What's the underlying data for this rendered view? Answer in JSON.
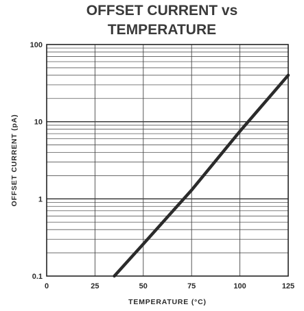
{
  "chart_data": {
    "type": "line",
    "title_line1": "OFFSET CURRENT vs",
    "title_line2": "TEMPERATURE",
    "xlabel": "TEMPERATURE (°C)",
    "ylabel": "OFFSET CURRENT (pA)",
    "xlim": [
      0,
      125
    ],
    "ylim": [
      0.1,
      100
    ],
    "yscale": "log",
    "grid": true,
    "x_ticks": [
      0,
      25,
      50,
      75,
      100,
      125
    ],
    "x_tick_labels": [
      "0",
      "25",
      "50",
      "75",
      "100",
      "125"
    ],
    "y_ticks": [
      0.1,
      1,
      10,
      100
    ],
    "y_tick_labels": [
      "0.1",
      "1",
      "10",
      "100"
    ],
    "series": [
      {
        "x": [
          35,
          50,
          75,
          100,
          125
        ],
        "y": [
          0.1,
          0.26,
          1.3,
          7.5,
          40
        ]
      }
    ],
    "colors": {
      "line": "#2b2b2b",
      "grid": "#444444"
    }
  }
}
